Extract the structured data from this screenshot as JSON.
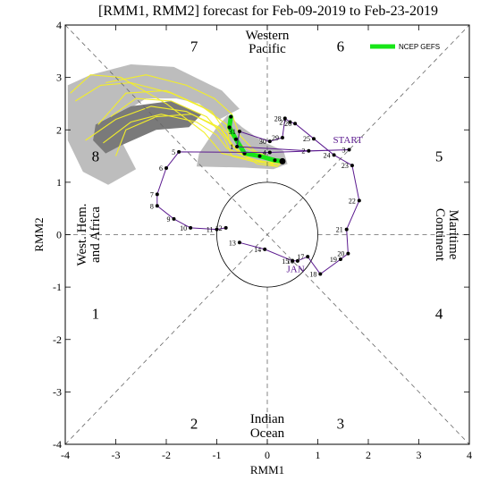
{
  "title": "[RMM1, RMM2] forecast for Feb-09-2019 to Feb-23-2019",
  "chart_data": {
    "type": "scatter",
    "xlabel": "RMM1",
    "ylabel": "RMM2",
    "xlim": [
      -4,
      4
    ],
    "ylim": [
      -4,
      4
    ],
    "xticks": [
      "-4",
      "-3",
      "-2",
      "-1",
      "0",
      "1",
      "2",
      "3",
      "4"
    ],
    "yticks": [
      "-4",
      "-3",
      "-2",
      "-1",
      "0",
      "1",
      "2",
      "3",
      "4"
    ],
    "phase_labels": [
      {
        "text": "1",
        "x": -3.4,
        "y": -1.5
      },
      {
        "text": "2",
        "x": -1.45,
        "y": -3.6
      },
      {
        "text": "3",
        "x": 1.45,
        "y": -3.6
      },
      {
        "text": "4",
        "x": 3.4,
        "y": -1.5
      },
      {
        "text": "5",
        "x": 3.4,
        "y": 1.5
      },
      {
        "text": "6",
        "x": 1.45,
        "y": 3.6
      },
      {
        "text": "7",
        "x": -1.45,
        "y": 3.6
      },
      {
        "text": "8",
        "x": -3.4,
        "y": 1.5
      }
    ],
    "regions": {
      "top": [
        "Western",
        "Pacific"
      ],
      "bottom": [
        "Indian",
        "Ocean"
      ],
      "left": [
        "West. Hem.",
        "and Africa"
      ],
      "right": [
        "Maritime",
        "Continent"
      ]
    },
    "unit_circle_radius": 1,
    "colors": {
      "observed": "#5b1a8f",
      "ensemble": "#f2ee2a",
      "mean": "#17e617",
      "spread_outer": "#bdbdbd",
      "spread_inner": "#7a7a7a"
    },
    "annotations": [
      {
        "text": "START",
        "x": 1.3,
        "y": 1.75
      },
      {
        "text": "JAN",
        "x": 0.38,
        "y": -0.72
      }
    ],
    "legend": {
      "label": "NCEP GEFS",
      "position": "top-right"
    },
    "series": [
      {
        "name": "observed",
        "points": [
          {
            "label": "13",
            "x": -0.55,
            "y": -0.15
          },
          {
            "label": "14",
            "x": -0.05,
            "y": -0.28
          },
          {
            "label": "15",
            "x": 0.5,
            "y": -0.5
          },
          {
            "label": "16",
            "x": 0.6,
            "y": -0.5
          },
          {
            "label": "17",
            "x": 0.8,
            "y": -0.42
          },
          {
            "label": "18",
            "x": 1.05,
            "y": -0.75
          },
          {
            "label": "19",
            "x": 1.45,
            "y": -0.47
          },
          {
            "label": "20",
            "x": 1.6,
            "y": -0.36
          },
          {
            "label": "21",
            "x": 1.57,
            "y": 0.1
          },
          {
            "label": "22",
            "x": 1.82,
            "y": 0.65
          },
          {
            "label": "23",
            "x": 1.68,
            "y": 1.32
          },
          {
            "label": "24",
            "x": 1.32,
            "y": 1.52
          },
          {
            "label": "25",
            "x": 0.92,
            "y": 1.83
          },
          {
            "label": "26",
            "x": 0.55,
            "y": 2.12
          },
          {
            "label": "27",
            "x": 0.45,
            "y": 2.15
          },
          {
            "label": "28",
            "x": 0.35,
            "y": 2.22
          },
          {
            "label": "29",
            "x": 0.3,
            "y": 1.85
          },
          {
            "label": "30",
            "x": 0.05,
            "y": 1.78
          },
          {
            "label": "31",
            "x": -0.55,
            "y": 1.97
          },
          {
            "label": "1",
            "x": -0.6,
            "y": 1.68
          },
          {
            "label": "2",
            "x": 0.82,
            "y": 1.6
          },
          {
            "label": "3",
            "x": 1.62,
            "y": 1.62
          },
          {
            "label": "4",
            "x": 0.05,
            "y": 1.57
          },
          {
            "label": "5",
            "x": -1.75,
            "y": 1.58
          },
          {
            "label": "6",
            "x": -2.0,
            "y": 1.27
          },
          {
            "label": "7",
            "x": -2.18,
            "y": 0.77
          },
          {
            "label": "8",
            "x": -2.18,
            "y": 0.55
          },
          {
            "label": "9",
            "x": -1.85,
            "y": 0.3
          },
          {
            "label": "10",
            "x": -1.52,
            "y": 0.13
          },
          {
            "label": "11",
            "x": -1.0,
            "y": 0.1
          },
          {
            "label": "12",
            "x": -0.82,
            "y": 0.13
          }
        ]
      },
      {
        "name": "NCEP GEFS",
        "x": [
          0.3,
          0.15,
          -0.15,
          -0.45,
          -0.62,
          -0.75,
          -0.72
        ],
        "y": [
          1.4,
          1.42,
          1.5,
          1.55,
          1.82,
          2.05,
          2.25
        ]
      }
    ],
    "ensemble_spread": {
      "outer": [
        [
          -3.95,
          2.85
        ],
        [
          -3.5,
          3.05
        ],
        [
          -2.7,
          3.25
        ],
        [
          -1.85,
          3.2
        ],
        [
          -0.9,
          2.75
        ],
        [
          -0.55,
          2.4
        ],
        [
          -0.95,
          2.2
        ],
        [
          -1.35,
          2.5
        ],
        [
          -1.8,
          2.6
        ],
        [
          -2.4,
          2.6
        ],
        [
          -2.9,
          2.3
        ],
        [
          -2.95,
          1.9
        ],
        [
          -2.6,
          1.25
        ],
        [
          -3.15,
          0.95
        ],
        [
          -3.65,
          1.2
        ],
        [
          -3.95,
          1.8
        ]
      ],
      "inner": [
        [
          -3.4,
          2.1
        ],
        [
          -2.7,
          2.45
        ],
        [
          -1.9,
          2.55
        ],
        [
          -1.3,
          2.3
        ],
        [
          -1.55,
          2.05
        ],
        [
          -2.2,
          2.0
        ],
        [
          -2.9,
          1.7
        ],
        [
          -3.2,
          1.55
        ],
        [
          -3.45,
          1.8
        ]
      ],
      "arm": [
        [
          -0.78,
          2.28
        ],
        [
          -0.5,
          2.05
        ],
        [
          -0.1,
          1.78
        ],
        [
          0.32,
          1.6
        ],
        [
          0.4,
          1.35
        ],
        [
          0.12,
          1.25
        ],
        [
          -0.45,
          1.28
        ],
        [
          -1.4,
          1.3
        ],
        [
          -1.35,
          1.55
        ],
        [
          -1.0,
          2.05
        ]
      ]
    },
    "ensemble_members": [
      {
        "x": [
          0.3,
          0.1,
          -0.3,
          -0.7,
          -0.85,
          -1.2,
          -1.9,
          -2.6,
          -3.1
        ],
        "y": [
          1.4,
          1.35,
          1.4,
          1.5,
          1.85,
          2.25,
          2.55,
          2.6,
          2.25
        ]
      },
      {
        "x": [
          0.3,
          0.0,
          -0.5,
          -0.75,
          -0.8,
          -1.3,
          -2.0,
          -2.8,
          -3.35
        ],
        "y": [
          1.4,
          1.45,
          1.55,
          1.75,
          2.1,
          2.45,
          2.75,
          2.7,
          2.1
        ]
      },
      {
        "x": [
          0.3,
          0.2,
          -0.2,
          -0.6,
          -0.9,
          -1.6,
          -2.3,
          -3.0,
          -3.6
        ],
        "y": [
          1.4,
          1.3,
          1.35,
          1.6,
          2.0,
          2.35,
          2.45,
          2.2,
          1.8
        ]
      },
      {
        "x": [
          0.3,
          -0.1,
          -0.5,
          -0.85,
          -1.1,
          -1.9,
          -2.7,
          -3.3,
          -3.8
        ],
        "y": [
          1.4,
          1.5,
          1.7,
          2.0,
          2.35,
          2.7,
          2.9,
          2.85,
          2.55
        ]
      },
      {
        "x": [
          0.3,
          0.15,
          -0.35,
          -0.7,
          -0.95,
          -1.5,
          -2.2,
          -2.8,
          -3.0
        ],
        "y": [
          1.4,
          1.32,
          1.45,
          1.7,
          2.05,
          2.3,
          2.25,
          2.0,
          1.5
        ]
      },
      {
        "x": [
          0.3,
          0.05,
          -0.4,
          -0.9,
          -1.25,
          -2.0,
          -2.9,
          -3.5,
          -3.9
        ],
        "y": [
          1.4,
          1.38,
          1.45,
          1.55,
          1.95,
          2.5,
          3.0,
          3.05,
          2.7
        ]
      },
      {
        "x": [
          0.3,
          0.1,
          -0.25,
          -0.55,
          -0.7,
          -1.05,
          -1.6,
          -2.4,
          -3.2
        ],
        "y": [
          1.4,
          1.45,
          1.6,
          1.9,
          2.3,
          2.6,
          2.85,
          3.05,
          2.9
        ]
      },
      {
        "x": [
          0.3,
          0.0,
          -0.45,
          -0.8,
          -1.0,
          -1.4,
          -2.1,
          -2.7,
          -3.25
        ],
        "y": [
          1.4,
          1.35,
          1.5,
          1.65,
          1.9,
          2.15,
          2.3,
          2.15,
          1.75
        ]
      }
    ]
  }
}
